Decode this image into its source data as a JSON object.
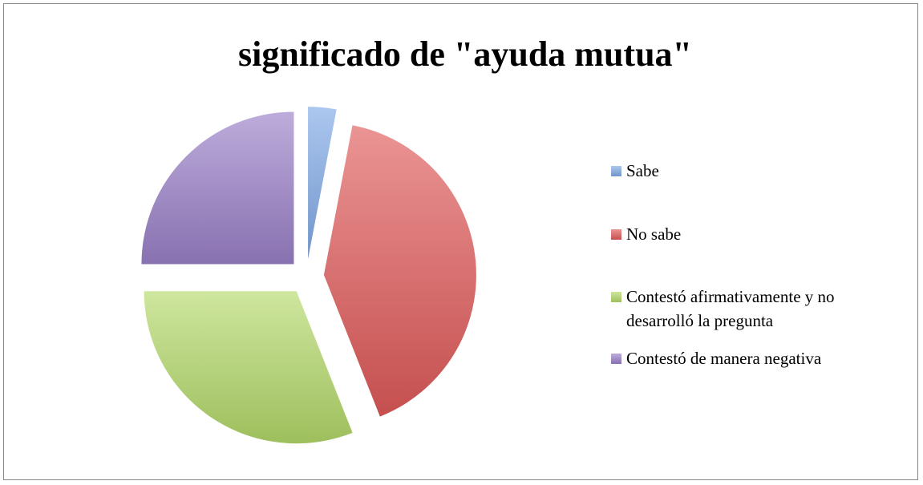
{
  "chart_data": {
    "type": "pie",
    "title": "significado de \"ayuda mutua\"",
    "categories": [
      "Sabe",
      "No sabe",
      "Contestó afirmativamente y no desarrolló la pregunta",
      "Contestó de manera negativa"
    ],
    "values": [
      3,
      41,
      31,
      25
    ],
    "colors": [
      "#7fa9e6",
      "#e05a5a",
      "#b4d96a",
      "#9a80c8"
    ],
    "legend": "right"
  }
}
